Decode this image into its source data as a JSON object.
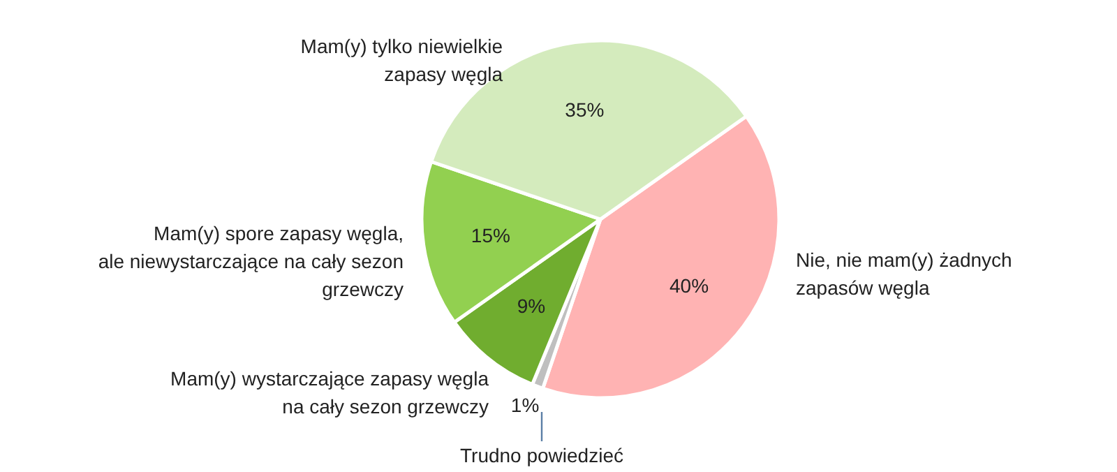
{
  "chart_data": {
    "type": "pie",
    "categories": [
      "Nie, nie mam(y) żadnych zapasów węgla",
      "Trudno powiedzieć",
      "Mam(y) wystarczające zapasy węgla na cały sezon grzewczy",
      "Mam(y) spore zapasy węgla, ale niewystarczające na cały sezon grzewczy",
      "Mam(y) tylko niewielkie zapasy węgla"
    ],
    "values": [
      40,
      1,
      9,
      15,
      35
    ],
    "value_labels": [
      "40%",
      "1%",
      "9%",
      "15%",
      "35%"
    ],
    "colors": [
      "#ffb3b3",
      "#bfbfbf",
      "#70ad2f",
      "#92d050",
      "#d4ebbd"
    ]
  }
}
